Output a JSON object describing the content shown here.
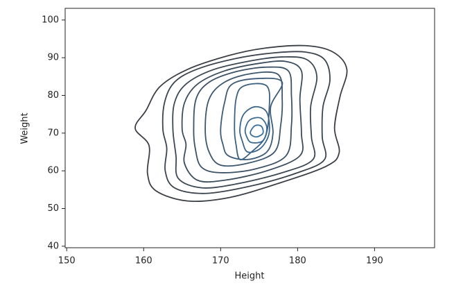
{
  "chart_data": {
    "type": "contour",
    "xlabel": "Height",
    "ylabel": "Weight",
    "xlim": [
      149.8,
      197.8
    ],
    "ylim": [
      39.6,
      103.1
    ],
    "xticks": [
      150,
      160,
      170,
      180,
      190
    ],
    "yticks": [
      40,
      50,
      60,
      70,
      80,
      90,
      100
    ],
    "series": [
      {
        "color": "#3b3f45",
        "x": [
          158.9,
          160.3,
          162.1,
          165.7,
          171.1,
          175.6,
          181,
          184.6,
          186.4,
          185.5,
          184.8,
          185.4,
          183.7,
          177.4,
          171.1,
          165.7,
          161.6,
          160.5,
          160.7
        ],
        "y": [
          71.3,
          76,
          82.3,
          86.9,
          90.6,
          92.5,
          93.2,
          91.5,
          86.9,
          79.6,
          71.3,
          64.8,
          61.2,
          56.6,
          52.9,
          52,
          54.7,
          59.3,
          66.7
        ]
      },
      {
        "color": "#3b434c",
        "x": [
          162.5,
          162.7,
          164,
          167,
          172,
          177,
          181,
          183.5,
          184.2,
          183.3,
          183.2,
          183.5,
          180,
          174,
          168,
          164,
          162.8,
          163
        ],
        "y": [
          71,
          78,
          83.5,
          87,
          89.8,
          91.3,
          91.5,
          89.5,
          84,
          77,
          69,
          63,
          59.5,
          56,
          54,
          55.5,
          60,
          66
        ]
      },
      {
        "color": "#3b4753",
        "x": [
          163.8,
          164,
          165.5,
          169,
          174,
          178,
          181.2,
          182.5,
          181.7,
          181.8,
          182,
          178,
          172,
          167.5,
          164.5,
          164.2
        ],
        "y": [
          71,
          78,
          83,
          86.8,
          89.2,
          90.2,
          89.5,
          85,
          77,
          69,
          63,
          59.5,
          56.5,
          55.5,
          58,
          64
        ]
      },
      {
        "color": "#3b4c5c",
        "x": [
          165,
          165.3,
          167,
          170.5,
          175,
          178.5,
          180.5,
          180.3,
          180.5,
          180.3,
          176,
          170.5,
          167,
          165.3,
          165.5
        ],
        "y": [
          71,
          78,
          83,
          86.5,
          88.5,
          89,
          86.5,
          79,
          70,
          64,
          60,
          57.5,
          57.5,
          62,
          67
        ]
      },
      {
        "color": "#3b5165",
        "x": [
          166.5,
          166.8,
          168.5,
          172,
          176,
          178.8,
          179.2,
          179.2,
          178.5,
          174.5,
          170,
          167.5,
          166.7
        ],
        "y": [
          71,
          79,
          83.5,
          86.3,
          87.5,
          86.5,
          80,
          72,
          64,
          60.5,
          59.5,
          61,
          66
        ]
      },
      {
        "color": "#3b566e",
        "x": [
          168,
          168.5,
          170.5,
          174,
          177.5,
          178,
          177.8,
          177,
          173.5,
          170,
          168.5
        ],
        "y": [
          71,
          79,
          83.5,
          85.8,
          85.5,
          79,
          72,
          65,
          62,
          61.5,
          65
        ]
      },
      {
        "color": "#3b5b78",
        "x": [
          170,
          170.5,
          171.5,
          175,
          178,
          176.5,
          176.8,
          176,
          173.5,
          171,
          170.3
        ],
        "y": [
          71,
          78,
          83,
          84.5,
          83.5,
          77,
          70,
          65,
          63,
          64,
          67
        ]
      },
      {
        "color": "#3b6081",
        "x": [
          171.8,
          172,
          173,
          176,
          176.3,
          175.8,
          174,
          172.5,
          172
        ],
        "y": [
          71,
          79,
          82.5,
          82.5,
          76,
          69,
          65,
          63,
          67
        ]
      },
      {
        "color": "#3b658a",
        "x": [
          172.5,
          173,
          174.5,
          176,
          176.3,
          175.2,
          173.5,
          172.8
        ],
        "y": [
          71,
          75,
          77,
          75.5,
          70,
          66,
          65,
          68
        ]
      },
      {
        "color": "#3b6a93",
        "x": [
          173.2,
          173.8,
          175.2,
          176,
          175.5,
          174,
          173.4
        ],
        "y": [
          71,
          73.5,
          74,
          71.5,
          68,
          67.5,
          69
        ]
      },
      {
        "color": "#3b6f9c",
        "x": [
          173.9,
          174.5,
          175.3,
          175.5,
          174.7,
          174
        ],
        "y": [
          70.5,
          72,
          71.8,
          70,
          69,
          69.5
        ]
      }
    ]
  }
}
